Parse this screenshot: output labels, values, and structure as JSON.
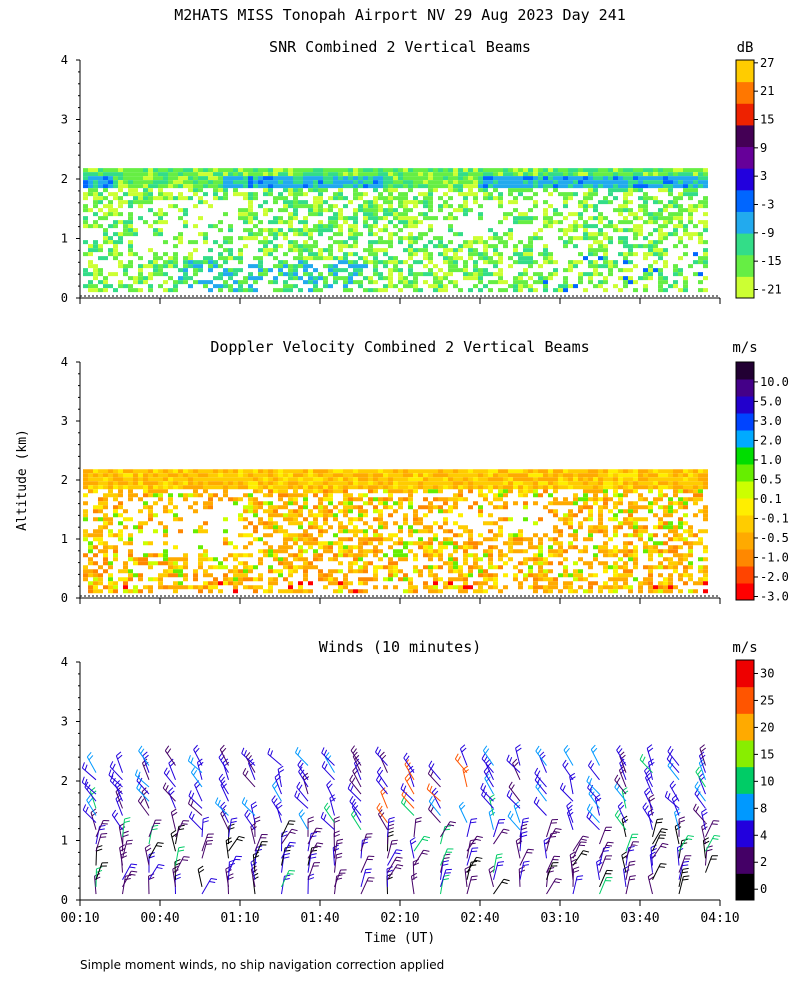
{
  "title": "M2HATS MISS Tonopah Airport NV  29 Aug 2023 Day 241",
  "footnote": "Simple moment winds, no ship navigation correction applied",
  "shared_ylabel": "Altitude (km)",
  "xlabel": "Time (UT)",
  "colors": {
    "snr": [
      "#ccff33",
      "#66ee44",
      "#33dd88",
      "#22aaee",
      "#0066ff",
      "#2200dd",
      "#660099",
      "#440055",
      "#ee2200",
      "#ff7700",
      "#ffcc00"
    ],
    "doppler": [
      "#ff0000",
      "#ff4400",
      "#ff8800",
      "#ffaa00",
      "#ffcc00",
      "#ffee00",
      "#ccff00",
      "#66ee00",
      "#00dd00",
      "#00aaff",
      "#0044ff",
      "#2200cc",
      "#440088",
      "#220033"
    ],
    "winds": [
      "#000000",
      "#440066",
      "#2200dd",
      "#0099ff",
      "#00cc66",
      "#88ee00",
      "#ffaa00",
      "#ff5500",
      "#ee0000"
    ]
  },
  "chart_data": [
    {
      "type": "heatmap",
      "title": "SNR Combined 2 Vertical Beams",
      "unit": "dB",
      "ylabel": "Altitude (km)",
      "x_ticks": [
        "00:10",
        "00:40",
        "01:10",
        "01:40",
        "02:10",
        "02:40",
        "03:10",
        "03:40",
        "04:10"
      ],
      "y_ticks": [
        "0",
        "1",
        "2",
        "3",
        "4"
      ],
      "ylim": [
        0,
        4
      ],
      "colorbar_labels": [
        "-21",
        "-15",
        "-9",
        "-3",
        "3",
        "9",
        "15",
        "21",
        "27"
      ],
      "description_fields": {
        "echo_top_km": 2.2,
        "strong_layer_km": 2.0
      }
    },
    {
      "type": "heatmap",
      "title": "Doppler Velocity Combined 2 Vertical Beams",
      "unit": "m/s",
      "ylabel": "Altitude (km)",
      "x_ticks": [
        "00:10",
        "00:40",
        "01:10",
        "01:40",
        "02:10",
        "02:40",
        "03:10",
        "03:40",
        "04:10"
      ],
      "y_ticks": [
        "0",
        "1",
        "2",
        "3",
        "4"
      ],
      "ylim": [
        0,
        4
      ],
      "colorbar_labels": [
        "-3.0",
        "-2.0",
        "-1.0",
        "-0.5",
        "-0.1",
        "0.1",
        "0.5",
        "1.0",
        "2.0",
        "3.0",
        "5.0",
        "10.0"
      ]
    },
    {
      "type": "scatter",
      "title": "Winds (10 minutes)",
      "unit": "m/s",
      "ylabel": "Altitude (km)",
      "xlabel": "Time (UT)",
      "x_ticks": [
        "00:10",
        "00:40",
        "01:10",
        "01:40",
        "02:10",
        "02:40",
        "03:10",
        "03:40",
        "04:10"
      ],
      "y_ticks": [
        "0",
        "1",
        "2",
        "3",
        "4"
      ],
      "ylim": [
        0,
        4
      ],
      "colorbar_labels": [
        "0",
        "2",
        "4",
        "8",
        "10",
        "15",
        "20",
        "25",
        "30"
      ]
    }
  ]
}
